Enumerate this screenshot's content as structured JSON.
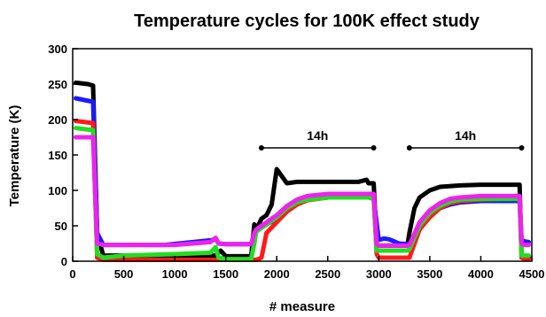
{
  "chart_data": {
    "type": "line",
    "title": "Temperature cycles for 100K effect study",
    "xlabel": "# measure",
    "ylabel": "Temperature (K)",
    "xlim": [
      0,
      4500
    ],
    "ylim": [
      0,
      300
    ],
    "xticks": [
      0,
      500,
      1000,
      1500,
      2000,
      2500,
      3000,
      3500,
      4000,
      4500
    ],
    "yticks": [
      0,
      50,
      100,
      150,
      200,
      250,
      300
    ],
    "grid": false,
    "legend": "none",
    "annotations": [
      {
        "text": "14h",
        "x_start": 1850,
        "x_end": 2950,
        "y": 160
      },
      {
        "text": "14h",
        "x_start": 3300,
        "x_end": 4400,
        "y": 160
      }
    ],
    "series": [
      {
        "color": "#000000",
        "x": [
          30,
          150,
          200,
          240,
          300,
          1400,
          1450,
          1500,
          1750,
          1780,
          1800,
          1850,
          1900,
          1950,
          2000,
          2100,
          2200,
          2500,
          2800,
          2880,
          2900,
          2950,
          2980,
          3000,
          3100,
          3280,
          3300,
          3350,
          3400,
          3500,
          3600,
          3800,
          4000,
          4300,
          4380,
          4400,
          4430,
          4470
        ],
        "y": [
          252,
          250,
          248,
          40,
          8,
          8,
          15,
          7,
          7,
          52,
          45,
          60,
          65,
          80,
          130,
          110,
          112,
          112,
          112,
          115,
          110,
          110,
          22,
          22,
          22,
          22,
          40,
          75,
          90,
          100,
          105,
          107,
          108,
          108,
          108,
          5,
          5,
          5
        ]
      },
      {
        "color": "#1a1aff",
        "x": [
          30,
          200,
          240,
          300,
          900,
          1380,
          1400,
          1430,
          1500,
          1750,
          1780,
          1800,
          1900,
          2000,
          2100,
          2200,
          2300,
          2500,
          2800,
          2900,
          2950,
          3000,
          3050,
          3100,
          3150,
          3200,
          3280,
          3300,
          3400,
          3500,
          3600,
          3700,
          3800,
          4000,
          4200,
          4380,
          4400,
          4430,
          4470
        ],
        "y": [
          230,
          225,
          40,
          23,
          23,
          30,
          32,
          25,
          24,
          24,
          38,
          44,
          52,
          60,
          72,
          82,
          87,
          90,
          90,
          90,
          88,
          30,
          32,
          31,
          28,
          25,
          24,
          22,
          45,
          65,
          75,
          80,
          83,
          85,
          85,
          85,
          30,
          28,
          27
        ]
      },
      {
        "color": "#ff1a1a",
        "x": [
          30,
          200,
          240,
          300,
          1400,
          1500,
          1750,
          1800,
          1850,
          1900,
          2000,
          2100,
          2200,
          2300,
          2500,
          2800,
          2900,
          2950,
          2980,
          3000,
          3100,
          3280,
          3300,
          3400,
          3500,
          3600,
          3700,
          3800,
          4000,
          4200,
          4380,
          4400,
          4430,
          4470
        ],
        "y": [
          198,
          195,
          5,
          2,
          2,
          2,
          2,
          2,
          5,
          40,
          55,
          70,
          80,
          86,
          90,
          92,
          92,
          90,
          10,
          5,
          5,
          5,
          5,
          45,
          62,
          75,
          82,
          85,
          87,
          88,
          88,
          5,
          3,
          3
        ]
      },
      {
        "color": "#22dd22",
        "x": [
          30,
          200,
          240,
          300,
          500,
          1000,
          1350,
          1400,
          1430,
          1500,
          1750,
          1780,
          1800,
          1900,
          2000,
          2100,
          2200,
          2300,
          2500,
          2800,
          2900,
          2950,
          2980,
          3000,
          3100,
          3280,
          3300,
          3400,
          3500,
          3600,
          3700,
          3800,
          4000,
          4200,
          4380,
          4400,
          4430,
          4470
        ],
        "y": [
          188,
          185,
          10,
          5,
          8,
          10,
          12,
          20,
          5,
          3,
          3,
          25,
          42,
          52,
          62,
          75,
          83,
          87,
          90,
          90,
          90,
          88,
          15,
          15,
          15,
          15,
          17,
          50,
          68,
          78,
          84,
          87,
          88,
          88,
          88,
          8,
          8,
          8
        ]
      },
      {
        "color": "#ee22ee",
        "x": [
          30,
          200,
          240,
          300,
          1000,
          1350,
          1400,
          1430,
          1500,
          1750,
          1780,
          1800,
          1900,
          2000,
          2100,
          2200,
          2300,
          2500,
          2800,
          2900,
          2950,
          2980,
          3000,
          3100,
          3280,
          3300,
          3400,
          3500,
          3600,
          3700,
          3800,
          4000,
          4200,
          4380,
          4400,
          4430,
          4470
        ],
        "y": [
          175,
          175,
          25,
          23,
          23,
          27,
          33,
          25,
          24,
          24,
          40,
          45,
          55,
          65,
          78,
          87,
          92,
          95,
          95,
          95,
          95,
          24,
          22,
          22,
          22,
          23,
          55,
          72,
          82,
          88,
          90,
          92,
          92,
          92,
          25,
          23,
          23
        ]
      }
    ]
  }
}
